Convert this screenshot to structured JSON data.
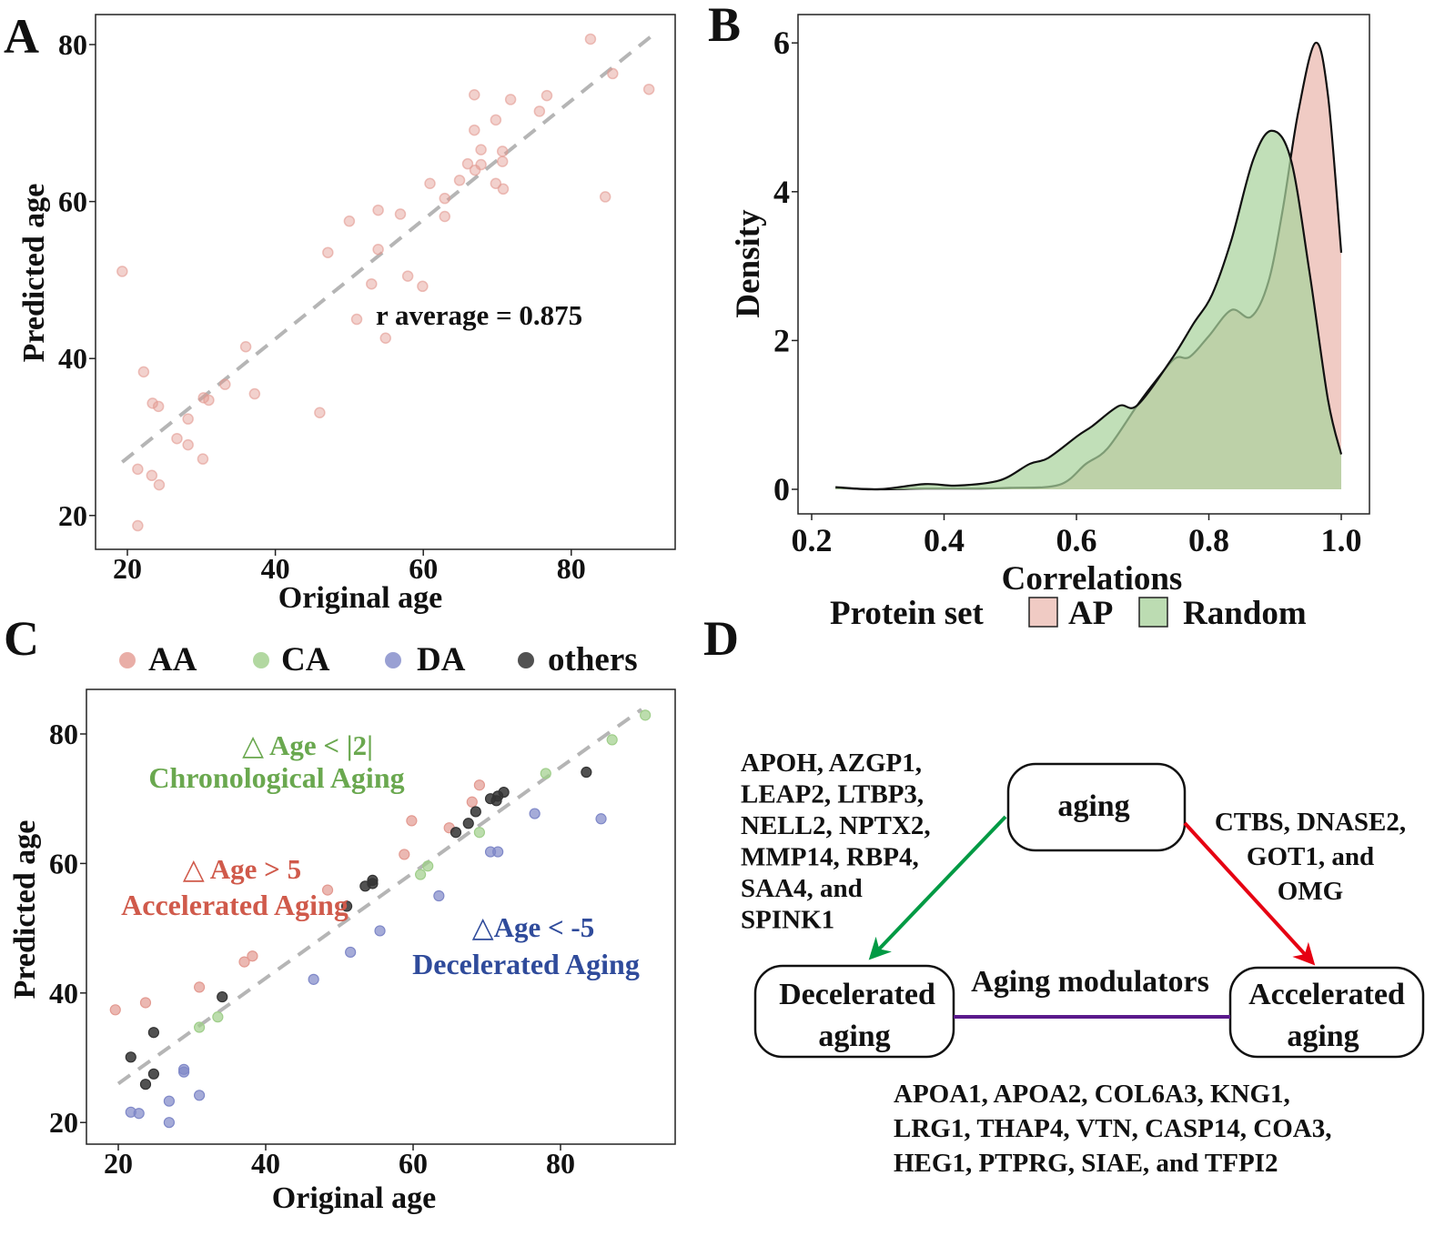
{
  "panel_letters": {
    "a": "A",
    "b": "B",
    "c": "C",
    "d": "D"
  },
  "colors": {
    "AA": "#e39a91",
    "CA": "#9fce8a",
    "DA": "#7f88c8",
    "others": "#333333",
    "AP": "#f0cbc4",
    "Random": "#a9d39c",
    "annot_green": "#6aa84f",
    "annot_red": "#d05a4b",
    "annot_blue": "#2f4b9b",
    "arrow_green": "#009a44",
    "arrow_red": "#e60012",
    "link_purple": "#5b1a8c",
    "regression": "#b5b5b5"
  },
  "chart_data": [
    {
      "id": "A",
      "type": "scatter",
      "xlabel": "Original age",
      "ylabel": "Predicted age",
      "xlim": [
        15.7,
        94
      ],
      "ylim": [
        15.7,
        83.8
      ],
      "xticks": [
        20,
        40,
        60,
        80
      ],
      "yticks": [
        20,
        40,
        60,
        80
      ],
      "annotation": "r  average =  0.875",
      "regression_line": [
        [
          19.3,
          26.8
        ],
        [
          91,
          81.2
        ]
      ],
      "points": [
        [
          19.3,
          51.1
        ],
        [
          21.4,
          25.9
        ],
        [
          22.2,
          38.3
        ],
        [
          23.4,
          34.3
        ],
        [
          24.2,
          33.9
        ],
        [
          21.4,
          18.7
        ],
        [
          23.3,
          25.1
        ],
        [
          24.3,
          23.9
        ],
        [
          26.7,
          29.8
        ],
        [
          28.2,
          32.3
        ],
        [
          28.2,
          29.0
        ],
        [
          30.3,
          35.0
        ],
        [
          31.0,
          34.7
        ],
        [
          30.2,
          27.2
        ],
        [
          33.2,
          36.7
        ],
        [
          37.2,
          35.5
        ],
        [
          36.0,
          41.5
        ],
        [
          46.0,
          33.1
        ],
        [
          47.1,
          53.5
        ],
        [
          50.0,
          57.5
        ],
        [
          51.0,
          45.0
        ],
        [
          53.0,
          49.5
        ],
        [
          53.9,
          58.9
        ],
        [
          53.9,
          53.9
        ],
        [
          54.9,
          42.6
        ],
        [
          56.9,
          58.4
        ],
        [
          57.9,
          50.5
        ],
        [
          59.9,
          49.2
        ],
        [
          60.9,
          62.3
        ],
        [
          62.9,
          58.1
        ],
        [
          62.9,
          60.4
        ],
        [
          64.9,
          62.7
        ],
        [
          66.0,
          64.8
        ],
        [
          66.9,
          73.6
        ],
        [
          66.9,
          69.1
        ],
        [
          67.0,
          64.0
        ],
        [
          67.8,
          66.6
        ],
        [
          67.8,
          64.7
        ],
        [
          69.8,
          70.4
        ],
        [
          69.8,
          62.3
        ],
        [
          70.7,
          65.1
        ],
        [
          70.7,
          66.4
        ],
        [
          70.8,
          61.6
        ],
        [
          71.8,
          73.0
        ],
        [
          75.7,
          71.5
        ],
        [
          76.7,
          73.5
        ],
        [
          82.6,
          80.7
        ],
        [
          84.6,
          60.6
        ],
        [
          85.6,
          76.3
        ],
        [
          90.5,
          74.3
        ]
      ]
    },
    {
      "id": "B",
      "type": "area",
      "xlabel": "Correlations",
      "ylabel": "Density",
      "xlim": [
        0.17,
        1.04
      ],
      "ylim": [
        -0.33,
        6.4
      ],
      "xticks": [
        "0.2",
        "0.4",
        "0.6",
        "0.8",
        "1.0"
      ],
      "yticks": [
        "0",
        "2",
        "4",
        "6"
      ],
      "legend": {
        "title": "Protein set",
        "entries": [
          "AP",
          "Random"
        ],
        "position": "bottom"
      },
      "series": [
        {
          "name": "AP",
          "x": [
            0.236,
            0.3,
            0.371,
            0.45,
            0.5,
            0.574,
            0.614,
            0.647,
            0.692,
            0.72,
            0.749,
            0.771,
            0.8,
            0.834,
            0.864,
            0.89,
            0.912,
            0.935,
            0.961,
            0.98,
            1.0
          ],
          "y": [
            0.02,
            0.0,
            0.01,
            0.01,
            0.02,
            0.06,
            0.34,
            0.55,
            1.13,
            1.46,
            1.76,
            1.78,
            2.06,
            2.41,
            2.32,
            2.79,
            3.78,
            5.07,
            6.0,
            5.29,
            3.18
          ]
        },
        {
          "name": "Random",
          "x": [
            0.236,
            0.3,
            0.371,
            0.42,
            0.484,
            0.529,
            0.557,
            0.602,
            0.624,
            0.664,
            0.692,
            0.743,
            0.777,
            0.805,
            0.834,
            0.867,
            0.895,
            0.924,
            0.952,
            0.98,
            1.0
          ],
          "y": [
            0.03,
            0.0,
            0.07,
            0.05,
            0.12,
            0.34,
            0.42,
            0.72,
            0.85,
            1.12,
            1.13,
            1.74,
            2.23,
            2.62,
            3.35,
            4.43,
            4.82,
            4.43,
            2.92,
            1.2,
            0.47
          ]
        }
      ]
    },
    {
      "id": "C",
      "type": "scatter",
      "xlabel": "Original age",
      "ylabel": "Predicted age",
      "xlim": [
        15.7,
        95.6
      ],
      "ylim": [
        16.6,
        86.9
      ],
      "xticks": [
        20,
        40,
        60,
        80
      ],
      "yticks": [
        20,
        40,
        60,
        80
      ],
      "legend": {
        "entries": [
          "AA",
          "CA",
          "DA",
          "others"
        ],
        "position": "top"
      },
      "regression_line": [
        [
          20,
          26.0
        ],
        [
          91,
          83.8
        ]
      ],
      "annotations": [
        {
          "group": "CA",
          "line1": "△ Age < |2|",
          "line2": "Chronological Aging"
        },
        {
          "group": "AA",
          "line1": "△ Age > 5",
          "line2": "Accelerated Aging"
        },
        {
          "group": "DA",
          "line1": "△Age < -5",
          "line2": "Decelerated Aging"
        }
      ],
      "series": [
        {
          "name": "AA",
          "points": [
            [
              19.6,
              37.4
            ],
            [
              23.7,
              38.5
            ],
            [
              31.0,
              40.9
            ],
            [
              37.1,
              44.8
            ],
            [
              38.2,
              45.7
            ],
            [
              48.4,
              55.9
            ],
            [
              58.8,
              61.4
            ],
            [
              59.8,
              66.6
            ],
            [
              64.9,
              65.5
            ],
            [
              68.0,
              69.5
            ],
            [
              69.0,
              72.1
            ]
          ]
        },
        {
          "name": "CA",
          "points": [
            [
              31.0,
              34.7
            ],
            [
              33.5,
              36.3
            ],
            [
              61.0,
              58.3
            ],
            [
              62.0,
              59.6
            ],
            [
              69.0,
              64.8
            ],
            [
              78.0,
              73.9
            ],
            [
              87.0,
              79.1
            ],
            [
              91.5,
              82.9
            ]
          ]
        },
        {
          "name": "DA",
          "points": [
            [
              21.7,
              21.6
            ],
            [
              22.8,
              21.4
            ],
            [
              26.9,
              23.3
            ],
            [
              26.9,
              20.0
            ],
            [
              28.9,
              28.2
            ],
            [
              28.9,
              27.8
            ],
            [
              31.0,
              24.2
            ],
            [
              46.5,
              42.1
            ],
            [
              51.5,
              46.3
            ],
            [
              55.5,
              49.6
            ],
            [
              63.5,
              55.0
            ],
            [
              70.5,
              61.8
            ],
            [
              71.5,
              61.8
            ],
            [
              76.5,
              67.7
            ],
            [
              85.5,
              66.9
            ]
          ]
        },
        {
          "name": "others",
          "points": [
            [
              21.7,
              30.1
            ],
            [
              24.8,
              33.9
            ],
            [
              23.7,
              25.9
            ],
            [
              24.8,
              27.5
            ],
            [
              34.1,
              39.4
            ],
            [
              51.0,
              53.4
            ],
            [
              53.5,
              56.5
            ],
            [
              54.5,
              57.4
            ],
            [
              54.5,
              56.9
            ],
            [
              65.8,
              64.8
            ],
            [
              67.5,
              66.2
            ],
            [
              68.5,
              68.0
            ],
            [
              70.5,
              70.0
            ],
            [
              71.3,
              69.7
            ],
            [
              71.5,
              70.4
            ],
            [
              72.3,
              71.0
            ],
            [
              83.5,
              74.1
            ]
          ]
        }
      ]
    }
  ],
  "diagram": {
    "node_aging": "aging",
    "node_decel": [
      "Decelerated",
      "aging"
    ],
    "node_accel": [
      "Accelerated",
      "aging"
    ],
    "link_label": "Aging modulators",
    "decel_genes": [
      "APOH,  AZGP1,",
      "LEAP2, LTBP3,",
      "NELL2, NPTX2,",
      "MMP14, RBP4,",
      "SAA4, and",
      "SPINK1"
    ],
    "accel_genes": [
      "CTBS, DNASE2,",
      "GOT1, and",
      "OMG"
    ],
    "modulator_genes": [
      "APOA1, APOA2, COL6A3, KNG1,",
      "LRG1, THAP4, VTN, CASP14, COA3,",
      "HEG1,  PTPRG, SIAE, and TFPI2"
    ]
  }
}
